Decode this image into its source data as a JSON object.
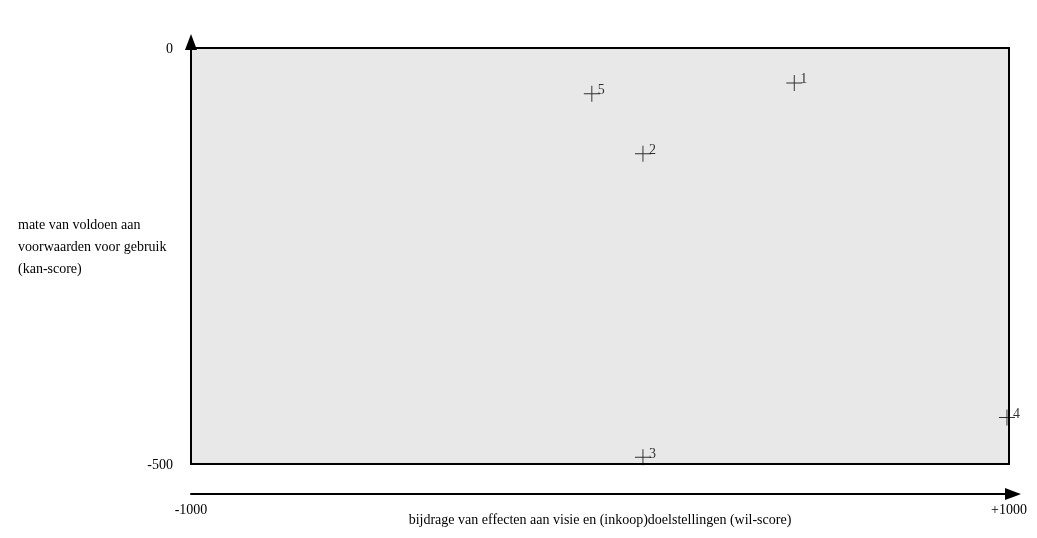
{
  "chart_data": {
    "type": "scatter",
    "xlabel": "bijdrage van effecten aan visie en (inkoop)doelstellingen (wil-score)",
    "ylabel": "mate van voldoen aan voorwaarden voor gebruik (kan-score)",
    "series": [
      {
        "name": "1",
        "color": "#000000",
        "x": [
          475
        ],
        "values": [
          -42
        ]
      },
      {
        "name": "2",
        "color": "#000000",
        "x": [
          105
        ],
        "values": [
          -127
        ]
      },
      {
        "name": "3",
        "color": "#000000",
        "x": [
          105
        ],
        "values": [
          -492
        ]
      },
      {
        "name": "4",
        "color": "#000000",
        "x": [
          995
        ],
        "values": [
          -444
        ]
      },
      {
        "name": "5",
        "color": "#000000",
        "x": [
          -20
        ],
        "values": [
          -55
        ]
      }
    ],
    "xlim": [
      -1000,
      1000
    ],
    "xticks": [
      -1000,
      {
        "value": 1000,
        "label": "+1000"
      }
    ],
    "ylim": [
      -500,
      0
    ],
    "yticks": [
      -500,
      0
    ],
    "marker": "cross",
    "grid": false,
    "legend": false
  }
}
